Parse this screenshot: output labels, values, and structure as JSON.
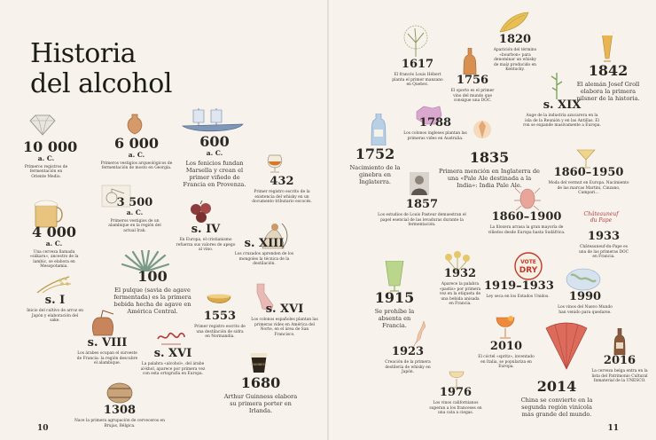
{
  "title": {
    "line1": "Historia",
    "line2": "del alcohol"
  },
  "page_numbers": {
    "left": "10",
    "right": "11"
  },
  "events": {
    "e10000": {
      "year": "10 000",
      "sub": "a. C.",
      "text": "Primeros registros de fermentación en Oriente Medio."
    },
    "e6000": {
      "year": "6 000",
      "sub": "a. C.",
      "text": "Primeros vestigios arqueológicos de fermentación de mosto en Georgia."
    },
    "e600": {
      "year": "600",
      "sub": "a. C.",
      "text": "Los fenicios fundan Marsella y crean el primer viñedo de Francia en Provenza."
    },
    "e432": {
      "year": "432",
      "text": "Primer registro escrito de la existencia del whisky en un documento tributario escocés."
    },
    "e4000": {
      "year": "4 000",
      "sub": "a. C.",
      "text": "Una cerveza llamada «siikaru», ancestro de la lambic, se elabora en Mesopotamia."
    },
    "e3500": {
      "year": "3 500",
      "sub": "a. C.",
      "text": "Primeros vestigios de un alambique en la región del actual Irak."
    },
    "esIV": {
      "year": "s. IV",
      "text": "En Europa, el cristianismo refuerza sus valores de apego al vino."
    },
    "esXIII": {
      "year": "s. XIII",
      "text": "Los cruzados aprenden de los mongoles la técnica de la destilación."
    },
    "e100": {
      "year": "100",
      "text": "El pulque (savia de agave fermentada) es la primera bebida hecha de agave en América Central."
    },
    "esI": {
      "year": "s. I",
      "text": "Inicio del cultivo de arroz en Japón y elaboración del sake."
    },
    "esVIII": {
      "year": "s. VIII",
      "text": "Los árabes ocupan el suroeste de Francia: la región descubre el alambique."
    },
    "esXVI1": {
      "year": "s. XVI",
      "text": "La palabra «alcohol», del árabe al-khol, aparece por primera vez con esta ortografía en Europa."
    },
    "e1553": {
      "year": "1553",
      "text": "Primer registro escrito de una destilación de sidra en Normandía."
    },
    "esXVI2": {
      "year": "s. XVI",
      "text": "Los colonos españoles plantan las primeras vides en América del Norte, en el área de San Francisco."
    },
    "e1308": {
      "year": "1308",
      "text": "Nace la primera agrupación de cerveceros en Brujas, Bélgica."
    },
    "e1680": {
      "year": "1680",
      "text": "Arthur Guinness elabora su primera porter en Irlanda."
    },
    "e1617": {
      "year": "1617",
      "text": "El francés Louis Hébert planta el primer manzano en Quebec."
    },
    "e1756": {
      "year": "1756",
      "text": "El oporto es el primer vino del mundo que consigue una DOC."
    },
    "e1820": {
      "year": "1820",
      "text": "Aparición del término «bourbon» para denominar un whisky de maíz producido en Kentucky."
    },
    "e1842": {
      "year": "1842",
      "text": "El alemán Josef Groll elabora la primera pilsner de la historia."
    },
    "esXIX": {
      "year": "s. XIX",
      "text": "Auge de la industria azucarera en la isla de la Reunión y en las Antillas. El ron se expande masivamente a Europa."
    },
    "e1788": {
      "year": "1788",
      "text": "Los colonos ingleses plantan las primeras vides en Australia."
    },
    "e1752": {
      "year": "1752",
      "text": "Nacimiento de la ginebra en Inglaterra."
    },
    "e1835": {
      "year": "1835",
      "text": "Primera mención en Inglaterra de una «Pale Ale destinada a la India»: India Pale Ale."
    },
    "e18601950": {
      "year": "1860–1950",
      "text": "Moda del vermut en Europa. Nacimiento de las marcas Martini, Cinzano, Campari…"
    },
    "e1857": {
      "year": "1857",
      "text": "Los estudios de Louis Pasteur demuestran el papel esencial de las levaduras durante la fermentación."
    },
    "e18601900": {
      "year": "1860–1900",
      "text": "La filoxera arrasa la gran mayoría de viñedos desde Europa hasta Sudáfrica."
    },
    "e1933a": {
      "year": "1933",
      "text": "Châteauneuf-du-Pape es una de las primeras DOC en Francia."
    },
    "e1915": {
      "year": "1915",
      "text": "Se prohíbe la absenta en Francia."
    },
    "e1932": {
      "year": "1932",
      "text": "Aparece la palabra «pastis» por primera vez en la etiqueta de una bebida anisada en Francia."
    },
    "e19191933": {
      "year": "1919–1933",
      "text": "Ley seca en los Estados Unidos."
    },
    "e1990": {
      "year": "1990",
      "text": "Los vinos del Nuevo Mundo han venido para quedarse."
    },
    "e1923": {
      "year": "1923",
      "text": "Creación de la primera destilería de whisky en Japón."
    },
    "e2010": {
      "year": "2010",
      "text": "El cóctel «spritz», inventado en Italia, se populariza en Europa."
    },
    "e2016": {
      "year": "2016",
      "text": "La cerveza belga entra en la lista del Patrimonio Cultural Inmaterial de la UNESCO."
    },
    "e1976": {
      "year": "1976",
      "text": "Los vinos californianos superan a los franceses en una cata a ciegas."
    },
    "e2014": {
      "year": "2014",
      "text": "China se convierte en la segunda región vinícola más grande del mundo."
    }
  },
  "labels": {
    "vote_line1": "VOTE",
    "vote_line2": "DRY",
    "chateau": "Châteauneuf du Pape",
    "guinness": "GUINNESS"
  },
  "colors": {
    "background": "#f7f3ec",
    "ink": "#2b2824",
    "accent_red": "#c0392b",
    "gold": "#d9a94a"
  }
}
